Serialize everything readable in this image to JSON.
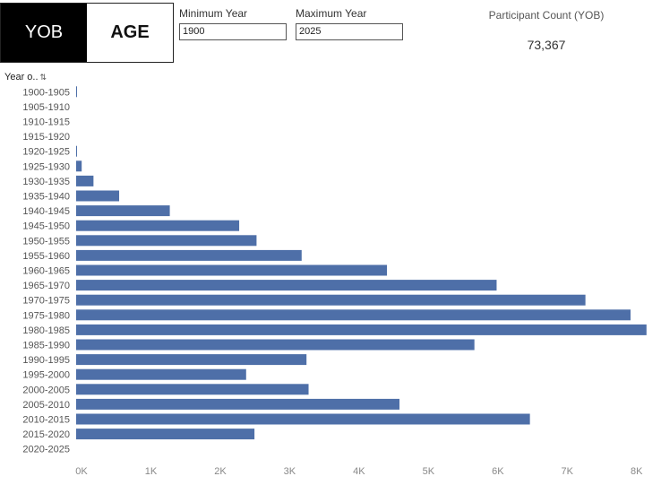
{
  "toggle": {
    "yob_label": "YOB",
    "age_label": "AGE",
    "selected": "YOB"
  },
  "filters": {
    "min_year": {
      "label": "Minimum Year",
      "value": "1900"
    },
    "max_year": {
      "label": "Maximum Year",
      "value": "2025"
    }
  },
  "participant_count": {
    "title": "Participant Count (YOB)",
    "value": "73,367"
  },
  "colors": {
    "bar": "#4e6fa8",
    "toggle_active_bg": "#000000"
  },
  "chart_data": {
    "type": "bar",
    "orientation": "horizontal",
    "y_header": "Year o..",
    "categories": [
      "1900-1905",
      "1905-1910",
      "1910-1915",
      "1915-1920",
      "1920-1925",
      "1925-1930",
      "1930-1935",
      "1935-1940",
      "1940-1945",
      "1945-1950",
      "1950-1955",
      "1955-1960",
      "1960-1965",
      "1965-1970",
      "1970-1975",
      "1975-1980",
      "1980-1985",
      "1985-1990",
      "1990-1995",
      "1995-2000",
      "2000-2005",
      "2005-2010",
      "2010-2015",
      "2015-2020",
      "2020-2025"
    ],
    "values": [
      10,
      0,
      0,
      0,
      10,
      80,
      250,
      620,
      1350,
      2350,
      2600,
      3250,
      4480,
      6060,
      7340,
      7990,
      8220,
      5740,
      3320,
      2450,
      3350,
      4660,
      6540,
      2570,
      0
    ],
    "xlim": [
      0,
      8300
    ],
    "xticks": [
      0,
      1000,
      2000,
      3000,
      4000,
      5000,
      6000,
      7000,
      8000
    ],
    "xtick_labels": [
      "0K",
      "1K",
      "2K",
      "3K",
      "4K",
      "5K",
      "6K",
      "7K",
      "8K"
    ],
    "grid": false
  }
}
